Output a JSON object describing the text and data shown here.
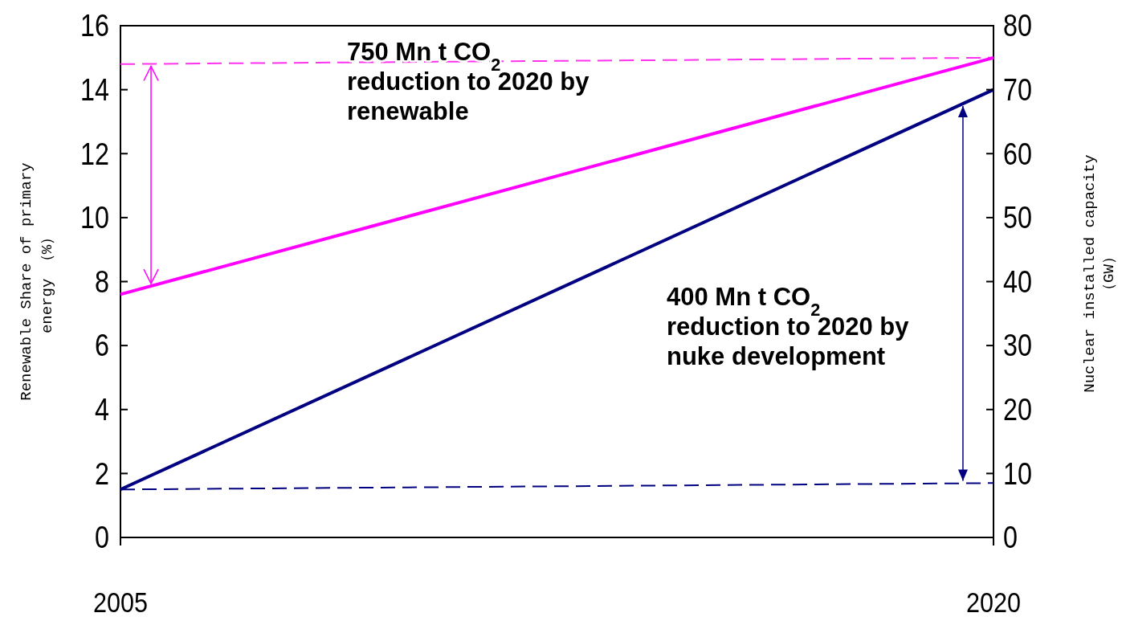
{
  "chart_data": {
    "type": "line",
    "xlabel": null,
    "ylabel": "Renewable Share of primary energy （%）",
    "y2label": "Nuclear installed capacity （GW）",
    "x": [
      2005,
      2020
    ],
    "xlim": [
      2005,
      2020
    ],
    "xticks": [
      2005,
      2020
    ],
    "ylim": [
      0,
      16
    ],
    "yticks": [
      0,
      2,
      4,
      6,
      8,
      10,
      12,
      14,
      16
    ],
    "y2lim": [
      0,
      80
    ],
    "y2ticks": [
      0,
      10,
      20,
      30,
      40,
      50,
      60,
      70,
      80
    ],
    "series": [
      {
        "color": "#ff33ee",
        "values": [
          14.8,
          15
        ],
        "line_style": "dashed"
      },
      {
        "color": "#ff00ff",
        "values": [
          7.6,
          15
        ],
        "line_style": "solid"
      },
      {
        "color": "#000080",
        "values": [
          7.5,
          8.5
        ],
        "axis": "y2",
        "line_style": "dashed"
      },
      {
        "color": "#000080",
        "values": [
          7.5,
          70
        ],
        "axis": "y2",
        "line_style": "solid"
      }
    ],
    "annotations": [
      "750 Mn t CO$_{2}$ reduction to 2020 by renewable",
      "400 Mn t CO$_{2}$ reduction to 2020 by nuke development"
    ],
    "grid": false
  }
}
